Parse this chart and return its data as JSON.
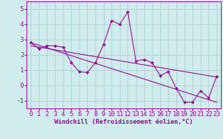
{
  "xlabel": "Windchill (Refroidissement éolien,°C)",
  "xlim": [
    -0.5,
    23.5
  ],
  "ylim": [
    -1.5,
    5.5
  ],
  "yticks": [
    -1,
    0,
    1,
    2,
    3,
    4,
    5
  ],
  "xticks": [
    0,
    1,
    2,
    3,
    4,
    5,
    6,
    7,
    8,
    9,
    10,
    11,
    12,
    13,
    14,
    15,
    16,
    17,
    18,
    19,
    20,
    21,
    22,
    23
  ],
  "background_color": "#d0ecec",
  "line_color": "#990099",
  "grid_color": "#aad4d4",
  "line1_x": [
    0,
    1,
    2,
    3,
    4,
    5,
    6,
    7,
    8,
    9,
    10,
    11,
    12,
    13,
    14,
    15,
    16,
    17,
    18,
    19,
    20,
    21,
    22,
    23
  ],
  "line1_y": [
    2.8,
    2.4,
    2.6,
    2.6,
    2.5,
    1.5,
    0.9,
    0.85,
    1.5,
    2.7,
    4.25,
    4.0,
    4.8,
    1.6,
    1.7,
    1.5,
    0.65,
    0.9,
    -0.2,
    -1.1,
    -1.1,
    -0.35,
    -0.8,
    0.6
  ],
  "line2_x": [
    0,
    23
  ],
  "line2_y": [
    2.8,
    -1.1
  ],
  "line3_x": [
    0,
    23
  ],
  "line3_y": [
    2.6,
    0.55
  ],
  "tick_fontsize": 6.5,
  "xlabel_fontsize": 6.5,
  "marker_size": 2.5,
  "line_width": 0.8
}
